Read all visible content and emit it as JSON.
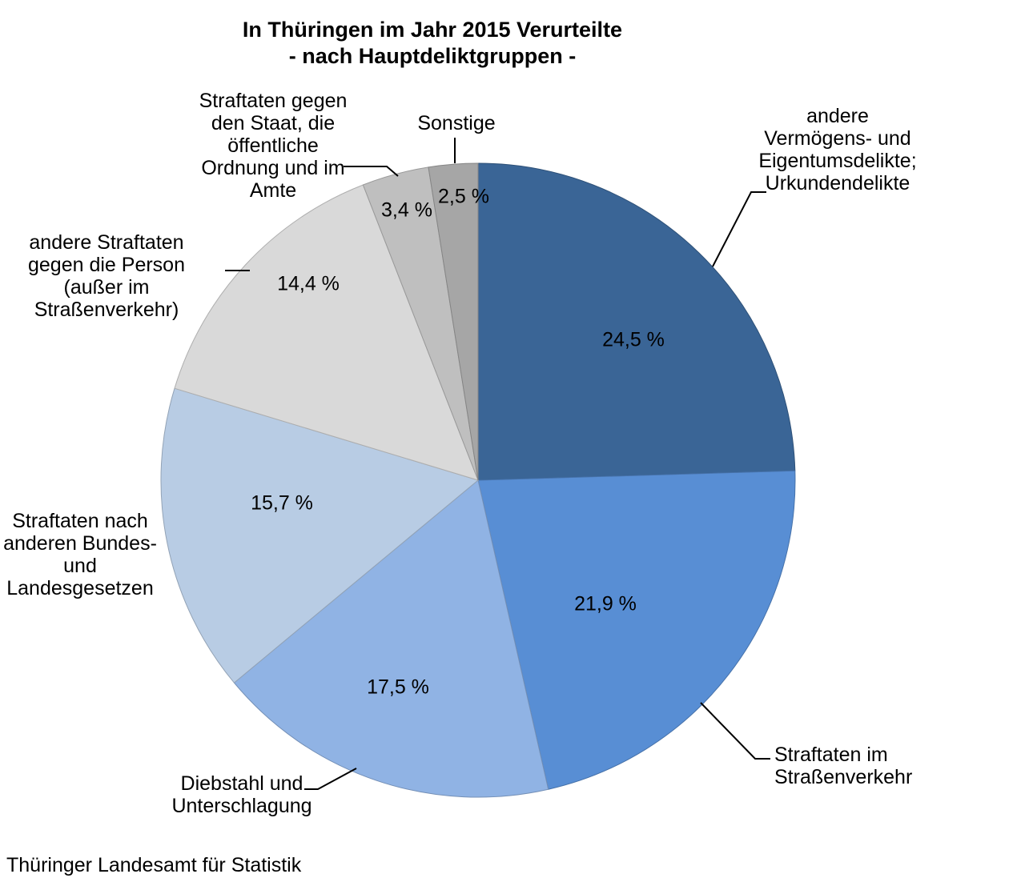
{
  "title_display": "In Thüringen im Jahr 2015 Verurteilte\n- nach Hauptdeliktgruppen -",
  "source": "Thüringer Landesamt für Statistik",
  "callouts": {
    "vermoegen": "andere\nVermögens- und\nEigentumsdelikte;\nUrkundendelikte",
    "strassenverkehr": "Straftaten im\nStraßenverkehr",
    "diebstahl": "Diebstahl und\nUnterschlagung",
    "bundes": "Straftaten nach\nanderen Bundes-\nund\nLandesgesetzen",
    "person": "andere Straftaten\ngegen die Person\n(außer im\nStraßenverkehr)",
    "staat": "Straftaten gegen\nden Staat, die\nöffentliche\nOrdnung und im\nAmte",
    "sonstige": "Sonstige"
  },
  "chart_data": {
    "type": "pie",
    "title": "In Thüringen im Jahr 2015 Verurteilte - nach Hauptdeliktgruppen -",
    "unit": "%",
    "decimal_style": "comma",
    "start_angle_deg": 0,
    "direction": "clockwise",
    "legend": "none",
    "slices": [
      {
        "id": "vermoegen",
        "label": "andere Vermögens- und Eigentumsdelikte; Urkundendelikte",
        "value": 24.5,
        "value_label": "24,5 %",
        "color": "#3A6596"
      },
      {
        "id": "strassenverkehr",
        "label": "Straftaten im Straßenverkehr",
        "value": 21.9,
        "value_label": "21,9 %",
        "color": "#588ED4"
      },
      {
        "id": "diebstahl",
        "label": "Diebstahl und Unterschlagung",
        "value": 17.5,
        "value_label": "17,5 %",
        "color": "#90B3E4"
      },
      {
        "id": "bundes",
        "label": "Straftaten nach anderen Bundes- und Landesgesetzen",
        "value": 15.7,
        "value_label": "15,7 %",
        "color": "#B8CCE4"
      },
      {
        "id": "person",
        "label": "andere Straftaten gegen die Person (außer im Straßenverkehr)",
        "value": 14.4,
        "value_label": "14,4 %",
        "color": "#D9D9D9"
      },
      {
        "id": "staat",
        "label": "Straftaten gegen den Staat, die öffentliche Ordnung und im Amte",
        "value": 3.4,
        "value_label": "3,4 %",
        "color": "#BFBFBF"
      },
      {
        "id": "sonstige",
        "label": "Sonstige",
        "value": 2.5,
        "value_label": "2,5 %",
        "color": "#A6A6A6"
      }
    ]
  }
}
